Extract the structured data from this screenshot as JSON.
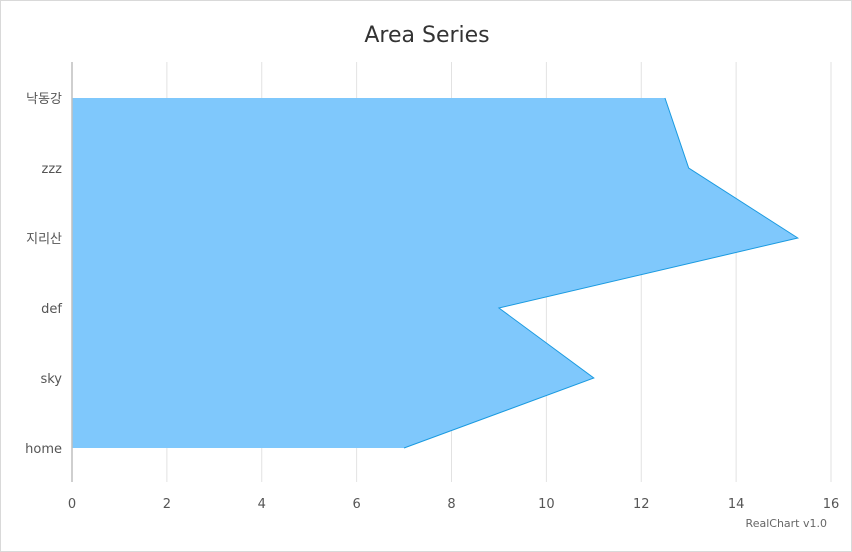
{
  "chart_data": {
    "type": "area",
    "orientation": "horizontal",
    "title": "Area Series",
    "categories": [
      "home",
      "sky",
      "def",
      "지리산",
      "zzz",
      "낙동강"
    ],
    "series": [
      {
        "values": [
          7,
          11,
          9,
          15.3,
          13,
          12.5
        ],
        "color": "#7fc8fc",
        "line_color": "#1a9ae0"
      }
    ],
    "xlim": [
      0,
      16
    ],
    "x_ticks": [
      0,
      2,
      4,
      6,
      8,
      10,
      12,
      14,
      16
    ],
    "grid": true,
    "legend": "none",
    "credit": "RealChart v1.0"
  }
}
